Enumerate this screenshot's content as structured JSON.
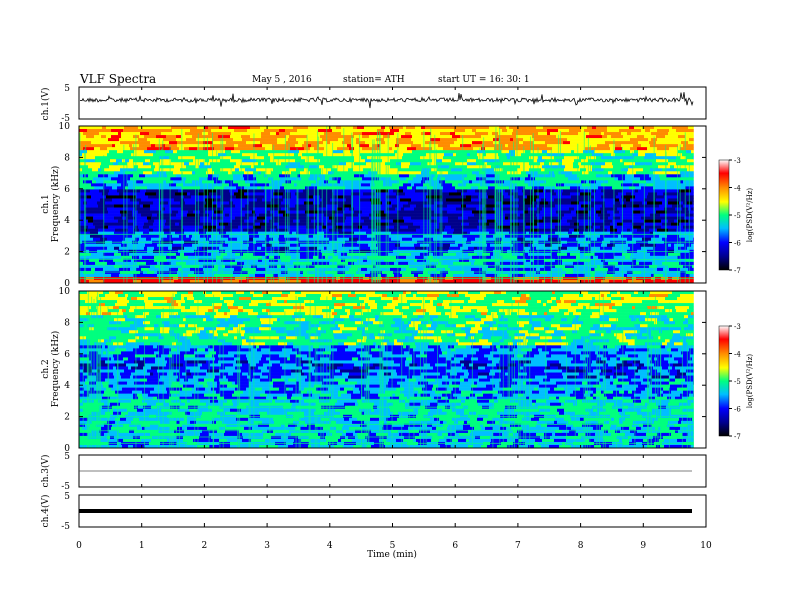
{
  "header": {
    "title": "VLF Spectra",
    "date": "May 5  , 2016",
    "station": "station= ATH",
    "start": "start  UT  =    16: 30: 1"
  },
  "colors": {
    "spectrogram_scale": [
      "#000000",
      "#00008b",
      "#0000ff",
      "#00bfff",
      "#00ff7f",
      "#ffff00",
      "#ff8c00",
      "#ff0000",
      "#ffffff"
    ],
    "trace": "#000000",
    "background": "#ffffff"
  },
  "chart_data": [
    {
      "type": "line",
      "panel": "ch1-voltage",
      "ylabel": "ch.1(V)",
      "ylim": [
        -5,
        5
      ],
      "yticks": [
        "5",
        "-5"
      ],
      "xlim": [
        0,
        10
      ],
      "series": [
        {
          "x": [
            0,
            9.8
          ],
          "y": [
            0,
            0
          ]
        }
      ]
    },
    {
      "type": "heatmap",
      "panel": "ch1-spectrogram",
      "ylabel": [
        "ch.1",
        "Frequency  (kHz)"
      ],
      "ylim": [
        0,
        10
      ],
      "yticks": [
        "0",
        "2",
        "4",
        "6",
        "8",
        "10"
      ],
      "colorbar": {
        "label": "log(PSD(V²/Hz)",
        "range": [
          -7,
          -3
        ],
        "ticks": [
          "-3",
          "-4",
          "-5",
          "-6",
          "-7"
        ]
      },
      "x_extent_min": 9.8
    },
    {
      "type": "heatmap",
      "panel": "ch2-spectrogram",
      "ylabel": [
        "ch.2",
        "Frequency  (kHz)"
      ],
      "ylim": [
        0,
        10
      ],
      "yticks": [
        "0",
        "2",
        "4",
        "6",
        "8",
        "10"
      ],
      "colorbar": {
        "label": "log(PSD(V²/Hz)",
        "range": [
          -7,
          -3
        ],
        "ticks": [
          "-3",
          "-4",
          "-5",
          "-6",
          "-7"
        ]
      },
      "x_extent_min": 9.8
    },
    {
      "type": "line",
      "panel": "ch3-voltage",
      "ylabel": "ch.3(V)",
      "ylim": [
        -5,
        5
      ],
      "yticks": [
        "5",
        "-5"
      ],
      "series": [
        {
          "x": [
            0,
            9.8
          ],
          "y": [
            0,
            0
          ]
        }
      ]
    },
    {
      "type": "line",
      "panel": "ch4-voltage",
      "ylabel": "ch.4(V)",
      "ylim": [
        -5,
        5
      ],
      "yticks": [
        "5",
        "-5"
      ],
      "series": [
        {
          "x": [
            0,
            9.8
          ],
          "y": [
            0,
            0
          ]
        }
      ]
    }
  ],
  "xaxis": {
    "label": "Time  (min)",
    "range": [
      0,
      10
    ],
    "ticks": [
      "0",
      "1",
      "2",
      "3",
      "4",
      "5",
      "6",
      "7",
      "8",
      "9",
      "10"
    ]
  }
}
